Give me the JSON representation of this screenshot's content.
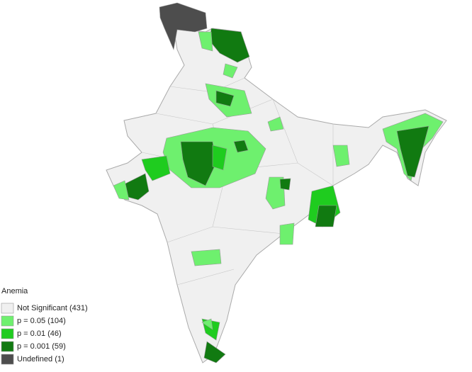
{
  "legend": {
    "title": "Anemia",
    "items": [
      {
        "label": "Not Significant (431)",
        "color": "#f0f0f0"
      },
      {
        "label": "p = 0.05 (104)",
        "color": "#6ef06e"
      },
      {
        "label": "p = 0.01 (46)",
        "color": "#1fcc1f"
      },
      {
        "label": "p = 0.001 (59)",
        "color": "#117a11"
      },
      {
        "label": "Undefined (1)",
        "color": "#4d4d4d"
      }
    ]
  }
}
